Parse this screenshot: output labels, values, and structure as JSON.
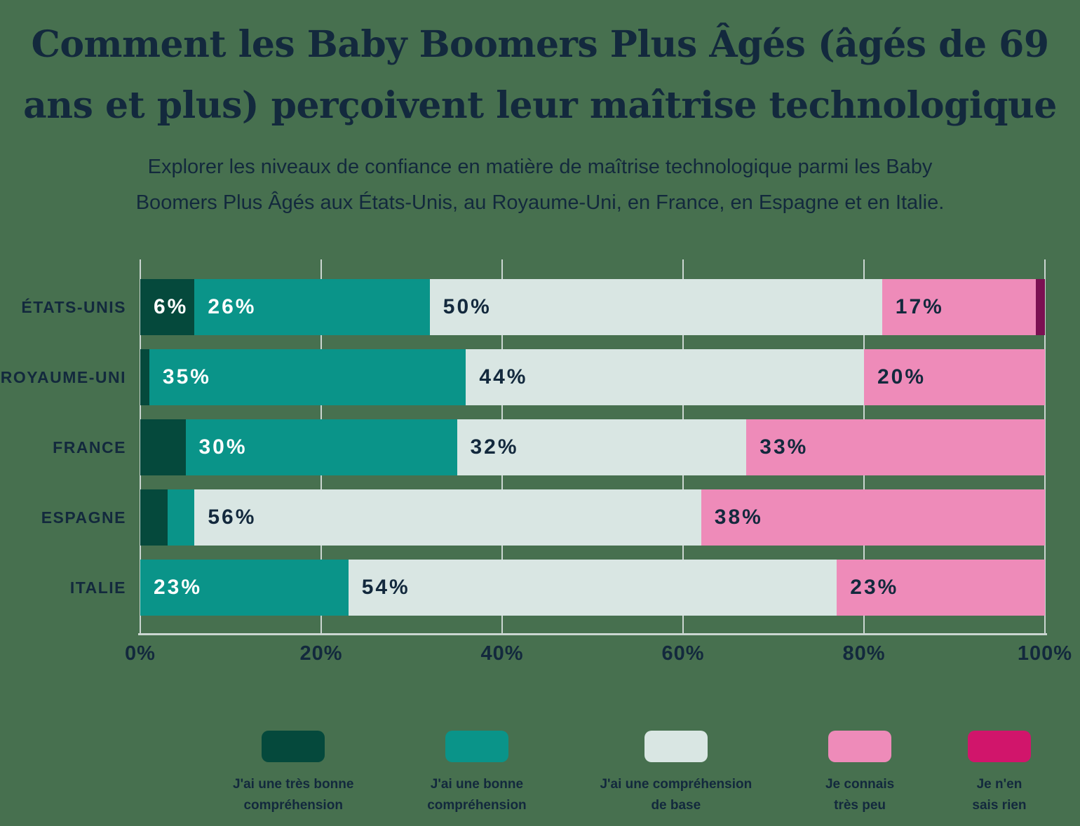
{
  "background_color": "#47704F",
  "text_color": "#13293D",
  "header": {
    "title": "Comment les Baby Boomers Plus Âgés (âgés de 69\nans et plus) perçoivent leur maîtrise technologique",
    "subtitle": "Explorer les niveaux de confiance en matière de maîtrise technologique parmi les Baby\nBoomers Plus Âgés aux États-Unis, au Royaume-Uni, en France, en Espagne et en Italie."
  },
  "chart_data": {
    "type": "bar",
    "orientation": "horizontal",
    "stacked": true,
    "title": "Comment les Baby Boomers Plus Âgés (âgés de 69 ans et plus) perçoivent leur maîtrise technologique",
    "categories": [
      "ÉTATS-UNIS",
      "ROYAUME-UNI",
      "FRANCE",
      "ESPAGNE",
      "ITALIE"
    ],
    "series": [
      {
        "name": "J'ai une très bonne\ncompréhension",
        "color": "#05493C",
        "legend_color": "#05493C",
        "text_color": "#FFFFFF",
        "values": [
          6,
          1,
          5,
          3,
          0
        ]
      },
      {
        "name": "J'ai une bonne\ncompréhension",
        "color": "#0A9489",
        "legend_color": "#0A9489",
        "text_color": "#FFFFFF",
        "values": [
          26,
          35,
          30,
          3,
          23
        ]
      },
      {
        "name": "J'ai une compréhension\nde base",
        "color": "#D9E6E3",
        "legend_color": "#D9E6E3",
        "text_color": "#13293D",
        "values": [
          50,
          44,
          32,
          56,
          54
        ]
      },
      {
        "name": "Je connais\ntrès peu",
        "color": "#EE8BB9",
        "legend_color": "#EE8BB9",
        "text_color": "#13293D",
        "values": [
          17,
          20,
          33,
          38,
          23
        ]
      },
      {
        "name": "Je n'en\nsais rien",
        "color": "#7B1052",
        "legend_color": "#D1156B",
        "text_color": "#FFFFFF",
        "values": [
          1,
          0,
          0,
          0,
          0
        ]
      }
    ],
    "segment_labels": [
      [
        "6%",
        "26%",
        "50%",
        "17%",
        ""
      ],
      [
        "",
        "35%",
        "44%",
        "20%",
        ""
      ],
      [
        "",
        "30%",
        "32%",
        "33%",
        ""
      ],
      [
        "",
        "",
        "56%",
        "38%",
        ""
      ],
      [
        "",
        "23%",
        "54%",
        "23%",
        ""
      ]
    ],
    "x_ticks": [
      0,
      20,
      40,
      60,
      80,
      100
    ],
    "x_tick_labels": [
      "0%",
      "20%",
      "40%",
      "60%",
      "80%",
      "100%"
    ],
    "xlim": [
      0,
      100
    ],
    "grid": "vertical",
    "gridline_color": "#CBD6D1",
    "legend_position": "bottom"
  }
}
